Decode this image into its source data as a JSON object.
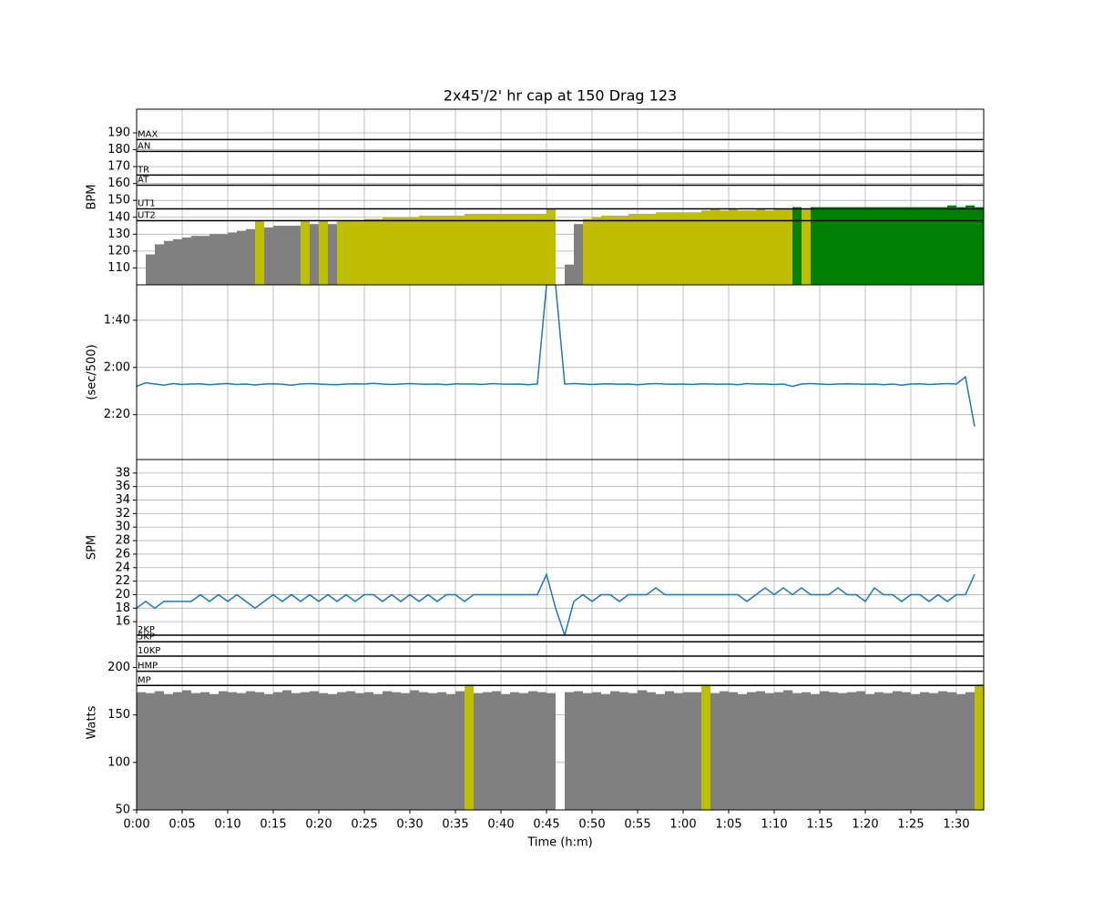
{
  "chart_data": [
    {
      "type": "bar",
      "title": "2x45'/2' hr cap at 150 Drag 123",
      "ylabel": "BPM",
      "x": [
        0,
        1,
        2,
        3,
        4,
        5,
        6,
        7,
        8,
        9,
        10,
        11,
        12,
        13,
        14,
        15,
        16,
        17,
        18,
        19,
        20,
        21,
        22,
        23,
        24,
        25,
        26,
        27,
        28,
        29,
        30,
        31,
        32,
        33,
        34,
        35,
        36,
        37,
        38,
        39,
        40,
        41,
        42,
        43,
        44,
        45,
        46,
        47,
        48,
        49,
        50,
        51,
        52,
        53,
        54,
        55,
        56,
        57,
        58,
        59,
        60,
        61,
        62,
        63,
        64,
        65,
        66,
        67,
        68,
        69,
        70,
        71,
        72,
        73,
        74,
        75,
        76,
        77,
        78,
        79,
        80,
        81,
        82,
        83,
        84,
        85,
        86,
        87,
        88,
        89,
        90,
        91,
        92
      ],
      "values": [
        100,
        118,
        124,
        126,
        127,
        128,
        129,
        129,
        130,
        130,
        131,
        132,
        133,
        138,
        134,
        135,
        135,
        135,
        138,
        136,
        138,
        136,
        138,
        138,
        138,
        139,
        139,
        140,
        140,
        140,
        140,
        141,
        141,
        141,
        141,
        141,
        142,
        142,
        142,
        142,
        142,
        142,
        142,
        142,
        142,
        145,
        null,
        112,
        136,
        139,
        140,
        141,
        141,
        141,
        142,
        142,
        142,
        143,
        143,
        143,
        143,
        143,
        144,
        145,
        144,
        145,
        144,
        144,
        145,
        144,
        145,
        145,
        146,
        145,
        146,
        146,
        146,
        146,
        146,
        146,
        146,
        146,
        146,
        146,
        146,
        146,
        146,
        146,
        146,
        147,
        146,
        147,
        146
      ],
      "zone_colors": [
        "#808080",
        "#bfbf00",
        "#008000"
      ],
      "zones": [
        {
          "name": "MAX",
          "value": 186
        },
        {
          "name": "AN",
          "value": 179
        },
        {
          "name": "TR",
          "value": 165
        },
        {
          "name": "AT",
          "value": 159
        },
        {
          "name": "UT1",
          "value": 145
        },
        {
          "name": "UT2",
          "value": 138
        }
      ],
      "ylim": [
        100,
        204
      ],
      "yticks": [
        110,
        120,
        130,
        140,
        150,
        160,
        170,
        180,
        190
      ],
      "grid": true
    },
    {
      "type": "line",
      "ylabel": "(sec/500)",
      "color": "#1f77b4",
      "inverted": true,
      "x": [
        0,
        1,
        2,
        3,
        4,
        5,
        6,
        7,
        8,
        9,
        10,
        11,
        12,
        13,
        14,
        15,
        16,
        17,
        18,
        19,
        20,
        21,
        22,
        23,
        24,
        25,
        26,
        27,
        28,
        29,
        30,
        31,
        32,
        33,
        34,
        35,
        36,
        37,
        38,
        39,
        40,
        41,
        42,
        43,
        44,
        45,
        46,
        47,
        48,
        49,
        50,
        51,
        52,
        53,
        54,
        55,
        56,
        57,
        58,
        59,
        60,
        61,
        62,
        63,
        64,
        65,
        66,
        67,
        68,
        69,
        70,
        71,
        72,
        73,
        74,
        75,
        76,
        77,
        78,
        79,
        80,
        81,
        82,
        83,
        84,
        85,
        86,
        87,
        88,
        89,
        90,
        91,
        92
      ],
      "values": [
        128,
        126.5,
        127,
        127.5,
        126.8,
        127.2,
        127,
        126.9,
        127.3,
        127,
        126.8,
        127.2,
        127,
        127.4,
        127,
        126.9,
        127.1,
        127.5,
        127,
        126.8,
        127,
        127.2,
        127.3,
        127,
        126.9,
        127,
        126.7,
        127,
        127.2,
        127,
        126.8,
        127,
        127.1,
        127,
        127.3,
        126.9,
        127,
        127,
        127.2,
        126.8,
        127,
        127.1,
        127,
        127.3,
        127,
        85,
        85,
        127,
        126.8,
        127,
        127.2,
        127,
        126.9,
        127.1,
        127,
        127.3,
        127,
        126.8,
        127,
        127.1,
        127,
        127.2,
        126.9,
        127,
        127.1,
        127,
        127.3,
        126.8,
        127,
        127,
        127.2,
        127,
        128,
        127,
        126.8,
        127,
        127.2,
        127,
        126.9,
        127,
        127.1,
        127,
        127.3,
        127,
        127.5,
        127,
        126.9,
        127.2,
        127,
        126.8,
        127,
        124,
        145
      ],
      "ylim": [
        85,
        159
      ],
      "yticks": [
        {
          "value": 100,
          "label": "1:40"
        },
        {
          "value": 120,
          "label": "2:00"
        },
        {
          "value": 140,
          "label": "2:20"
        }
      ],
      "grid": true
    },
    {
      "type": "line",
      "ylabel": "SPM",
      "color": "#1f77b4",
      "x": [
        0,
        1,
        2,
        3,
        4,
        5,
        6,
        7,
        8,
        9,
        10,
        11,
        12,
        13,
        14,
        15,
        16,
        17,
        18,
        19,
        20,
        21,
        22,
        23,
        24,
        25,
        26,
        27,
        28,
        29,
        30,
        31,
        32,
        33,
        34,
        35,
        36,
        37,
        38,
        39,
        40,
        41,
        42,
        43,
        44,
        45,
        46,
        47,
        48,
        49,
        50,
        51,
        52,
        53,
        54,
        55,
        56,
        57,
        58,
        59,
        60,
        61,
        62,
        63,
        64,
        65,
        66,
        67,
        68,
        69,
        70,
        71,
        72,
        73,
        74,
        75,
        76,
        77,
        78,
        79,
        80,
        81,
        82,
        83,
        84,
        85,
        86,
        87,
        88,
        89,
        90,
        91,
        92
      ],
      "values": [
        18,
        19,
        18,
        19,
        19,
        19,
        19,
        20,
        19,
        20,
        19,
        20,
        19,
        18,
        19,
        20,
        19,
        20,
        19,
        20,
        19,
        20,
        19,
        20,
        19,
        20,
        20,
        19,
        20,
        19,
        20,
        19,
        20,
        19,
        20,
        20,
        19,
        20,
        20,
        20,
        20,
        20,
        20,
        20,
        20,
        23,
        18,
        14,
        19,
        20,
        19,
        20,
        20,
        19,
        20,
        20,
        20,
        21,
        20,
        20,
        20,
        20,
        20,
        20,
        20,
        20,
        20,
        19,
        20,
        21,
        20,
        21,
        20,
        21,
        20,
        20,
        20,
        21,
        20,
        20,
        19,
        21,
        20,
        20,
        19,
        20,
        20,
        19,
        20,
        19,
        20,
        20,
        23
      ],
      "ylim": [
        14,
        40
      ],
      "yticks": [
        16,
        18,
        20,
        22,
        24,
        26,
        28,
        30,
        32,
        34,
        36,
        38
      ],
      "grid": true
    },
    {
      "type": "bar",
      "ylabel": "Watts",
      "xlabel": "Time (h:m)",
      "x": [
        0,
        1,
        2,
        3,
        4,
        5,
        6,
        7,
        8,
        9,
        10,
        11,
        12,
        13,
        14,
        15,
        16,
        17,
        18,
        19,
        20,
        21,
        22,
        23,
        24,
        25,
        26,
        27,
        28,
        29,
        30,
        31,
        32,
        33,
        34,
        35,
        36,
        37,
        38,
        39,
        40,
        41,
        42,
        43,
        44,
        45,
        46,
        47,
        48,
        49,
        50,
        51,
        52,
        53,
        54,
        55,
        56,
        57,
        58,
        59,
        60,
        61,
        62,
        63,
        64,
        65,
        66,
        67,
        68,
        69,
        70,
        71,
        72,
        73,
        74,
        75,
        76,
        77,
        78,
        79,
        80,
        81,
        82,
        83,
        84,
        85,
        86,
        87,
        88,
        89,
        90,
        91,
        92
      ],
      "values": [
        174,
        173,
        175,
        172,
        174,
        176,
        173,
        174,
        172,
        175,
        174,
        173,
        175,
        174,
        172,
        174,
        176,
        173,
        174,
        175,
        173,
        172,
        174,
        175,
        173,
        174,
        172,
        175,
        174,
        173,
        176,
        174,
        173,
        174,
        172,
        175,
        182,
        173,
        174,
        175,
        172,
        174,
        173,
        175,
        174,
        173,
        null,
        174,
        175,
        173,
        174,
        172,
        175,
        174,
        173,
        176,
        174,
        172,
        175,
        173,
        174,
        174,
        182,
        173,
        175,
        174,
        172,
        174,
        175,
        173,
        174,
        176,
        173,
        174,
        172,
        175,
        174,
        173,
        174,
        175,
        172,
        174,
        173,
        175,
        174,
        172,
        174,
        173,
        175,
        174,
        172,
        174,
        182
      ],
      "zone_colors": [
        "#808080",
        "#bfbf00",
        "#bfbf00"
      ],
      "zones": [
        {
          "name": "2KP",
          "value": 234
        },
        {
          "name": "5KP",
          "value": 227
        },
        {
          "name": "10KP",
          "value": 212
        },
        {
          "name": "HMP",
          "value": 196
        },
        {
          "name": "MP",
          "value": 181
        }
      ],
      "ylim": [
        50,
        234
      ],
      "yticks": [
        50,
        100,
        150,
        200
      ],
      "grid": true,
      "xlim": [
        0,
        93
      ],
      "xticks": [
        {
          "value": 0,
          "label": "0:00"
        },
        {
          "value": 5,
          "label": "0:05"
        },
        {
          "value": 10,
          "label": "0:10"
        },
        {
          "value": 15,
          "label": "0:15"
        },
        {
          "value": 20,
          "label": "0:20"
        },
        {
          "value": 25,
          "label": "0:25"
        },
        {
          "value": 30,
          "label": "0:30"
        },
        {
          "value": 35,
          "label": "0:35"
        },
        {
          "value": 40,
          "label": "0:40"
        },
        {
          "value": 45,
          "label": "0:45"
        },
        {
          "value": 50,
          "label": "0:50"
        },
        {
          "value": 55,
          "label": "0:55"
        },
        {
          "value": 60,
          "label": "1:00"
        },
        {
          "value": 65,
          "label": "1:05"
        },
        {
          "value": 70,
          "label": "1:10"
        },
        {
          "value": 75,
          "label": "1:15"
        },
        {
          "value": 80,
          "label": "1:20"
        },
        {
          "value": 85,
          "label": "1:25"
        },
        {
          "value": 90,
          "label": "1:30"
        }
      ]
    }
  ]
}
